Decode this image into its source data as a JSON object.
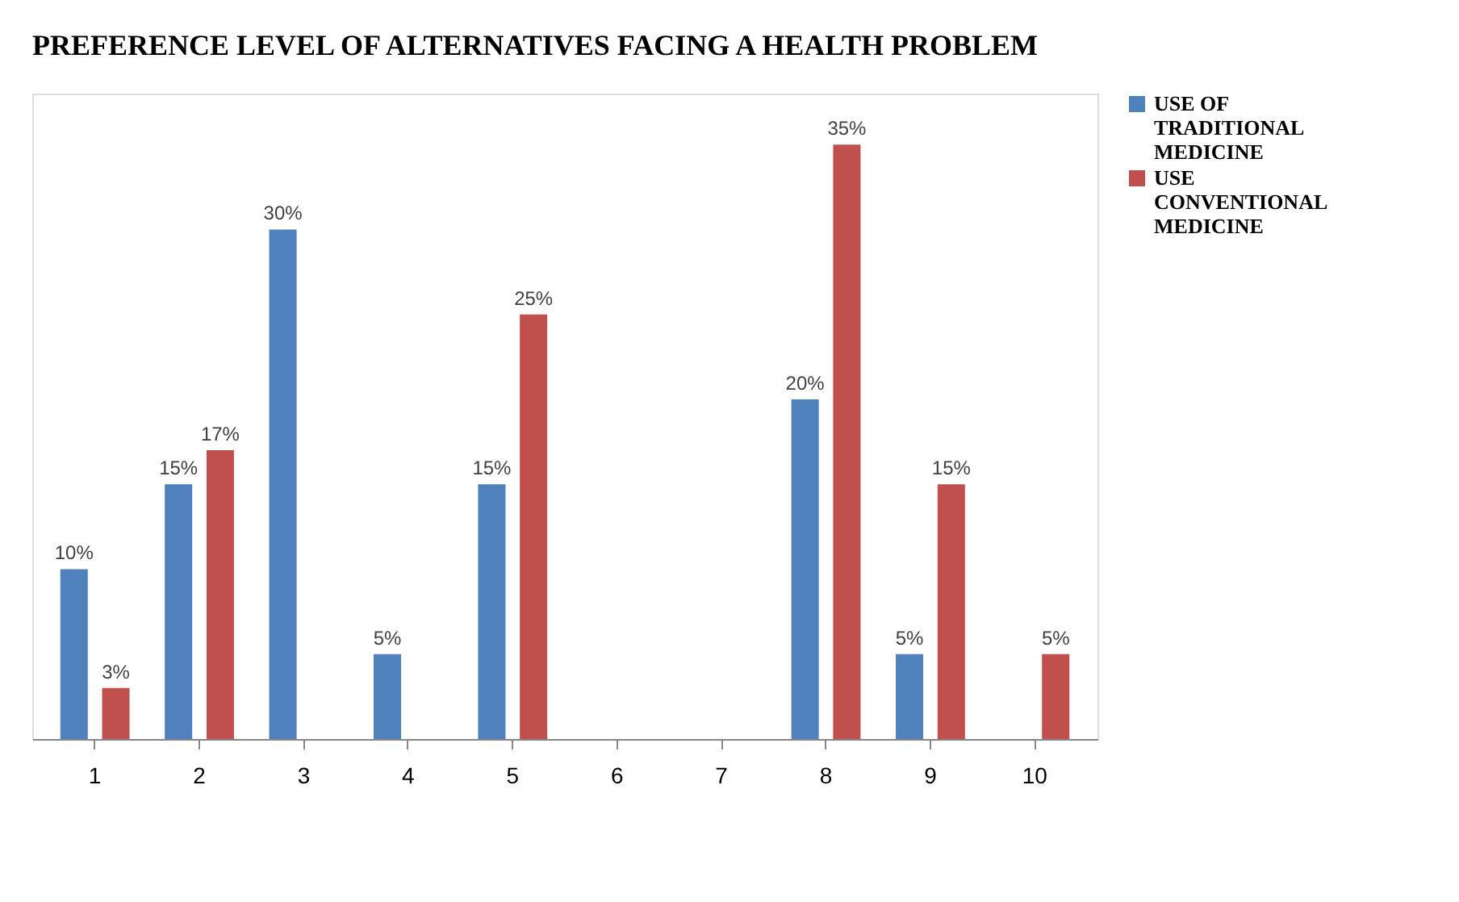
{
  "chart_data": {
    "type": "bar",
    "title": "PREFERENCE LEVEL OF ALTERNATIVES FACING A HEALTH PROBLEM",
    "categories": [
      "1",
      "2",
      "3",
      "4",
      "5",
      "6",
      "7",
      "8",
      "9",
      "10"
    ],
    "series": [
      {
        "name": "USE OF TRADITIONAL MEDICINE",
        "color": "#4f81bd",
        "values": [
          10,
          15,
          30,
          5,
          15,
          null,
          null,
          20,
          5,
          null
        ],
        "value_labels": [
          "10%",
          "15%",
          "30%",
          "5%",
          "15%",
          null,
          null,
          "20%",
          "5%",
          null
        ]
      },
      {
        "name": "USE CONVENTIONAL MEDICINE",
        "color": "#c0504d",
        "values": [
          3,
          17,
          null,
          null,
          25,
          null,
          null,
          35,
          15,
          5
        ],
        "value_labels": [
          "3%",
          "17%",
          null,
          null,
          "25%",
          null,
          null,
          "35%",
          "15%",
          "5%"
        ]
      }
    ],
    "ylim": [
      0,
      38
    ],
    "tick_labels": "x",
    "grid": false,
    "legend": "right"
  }
}
